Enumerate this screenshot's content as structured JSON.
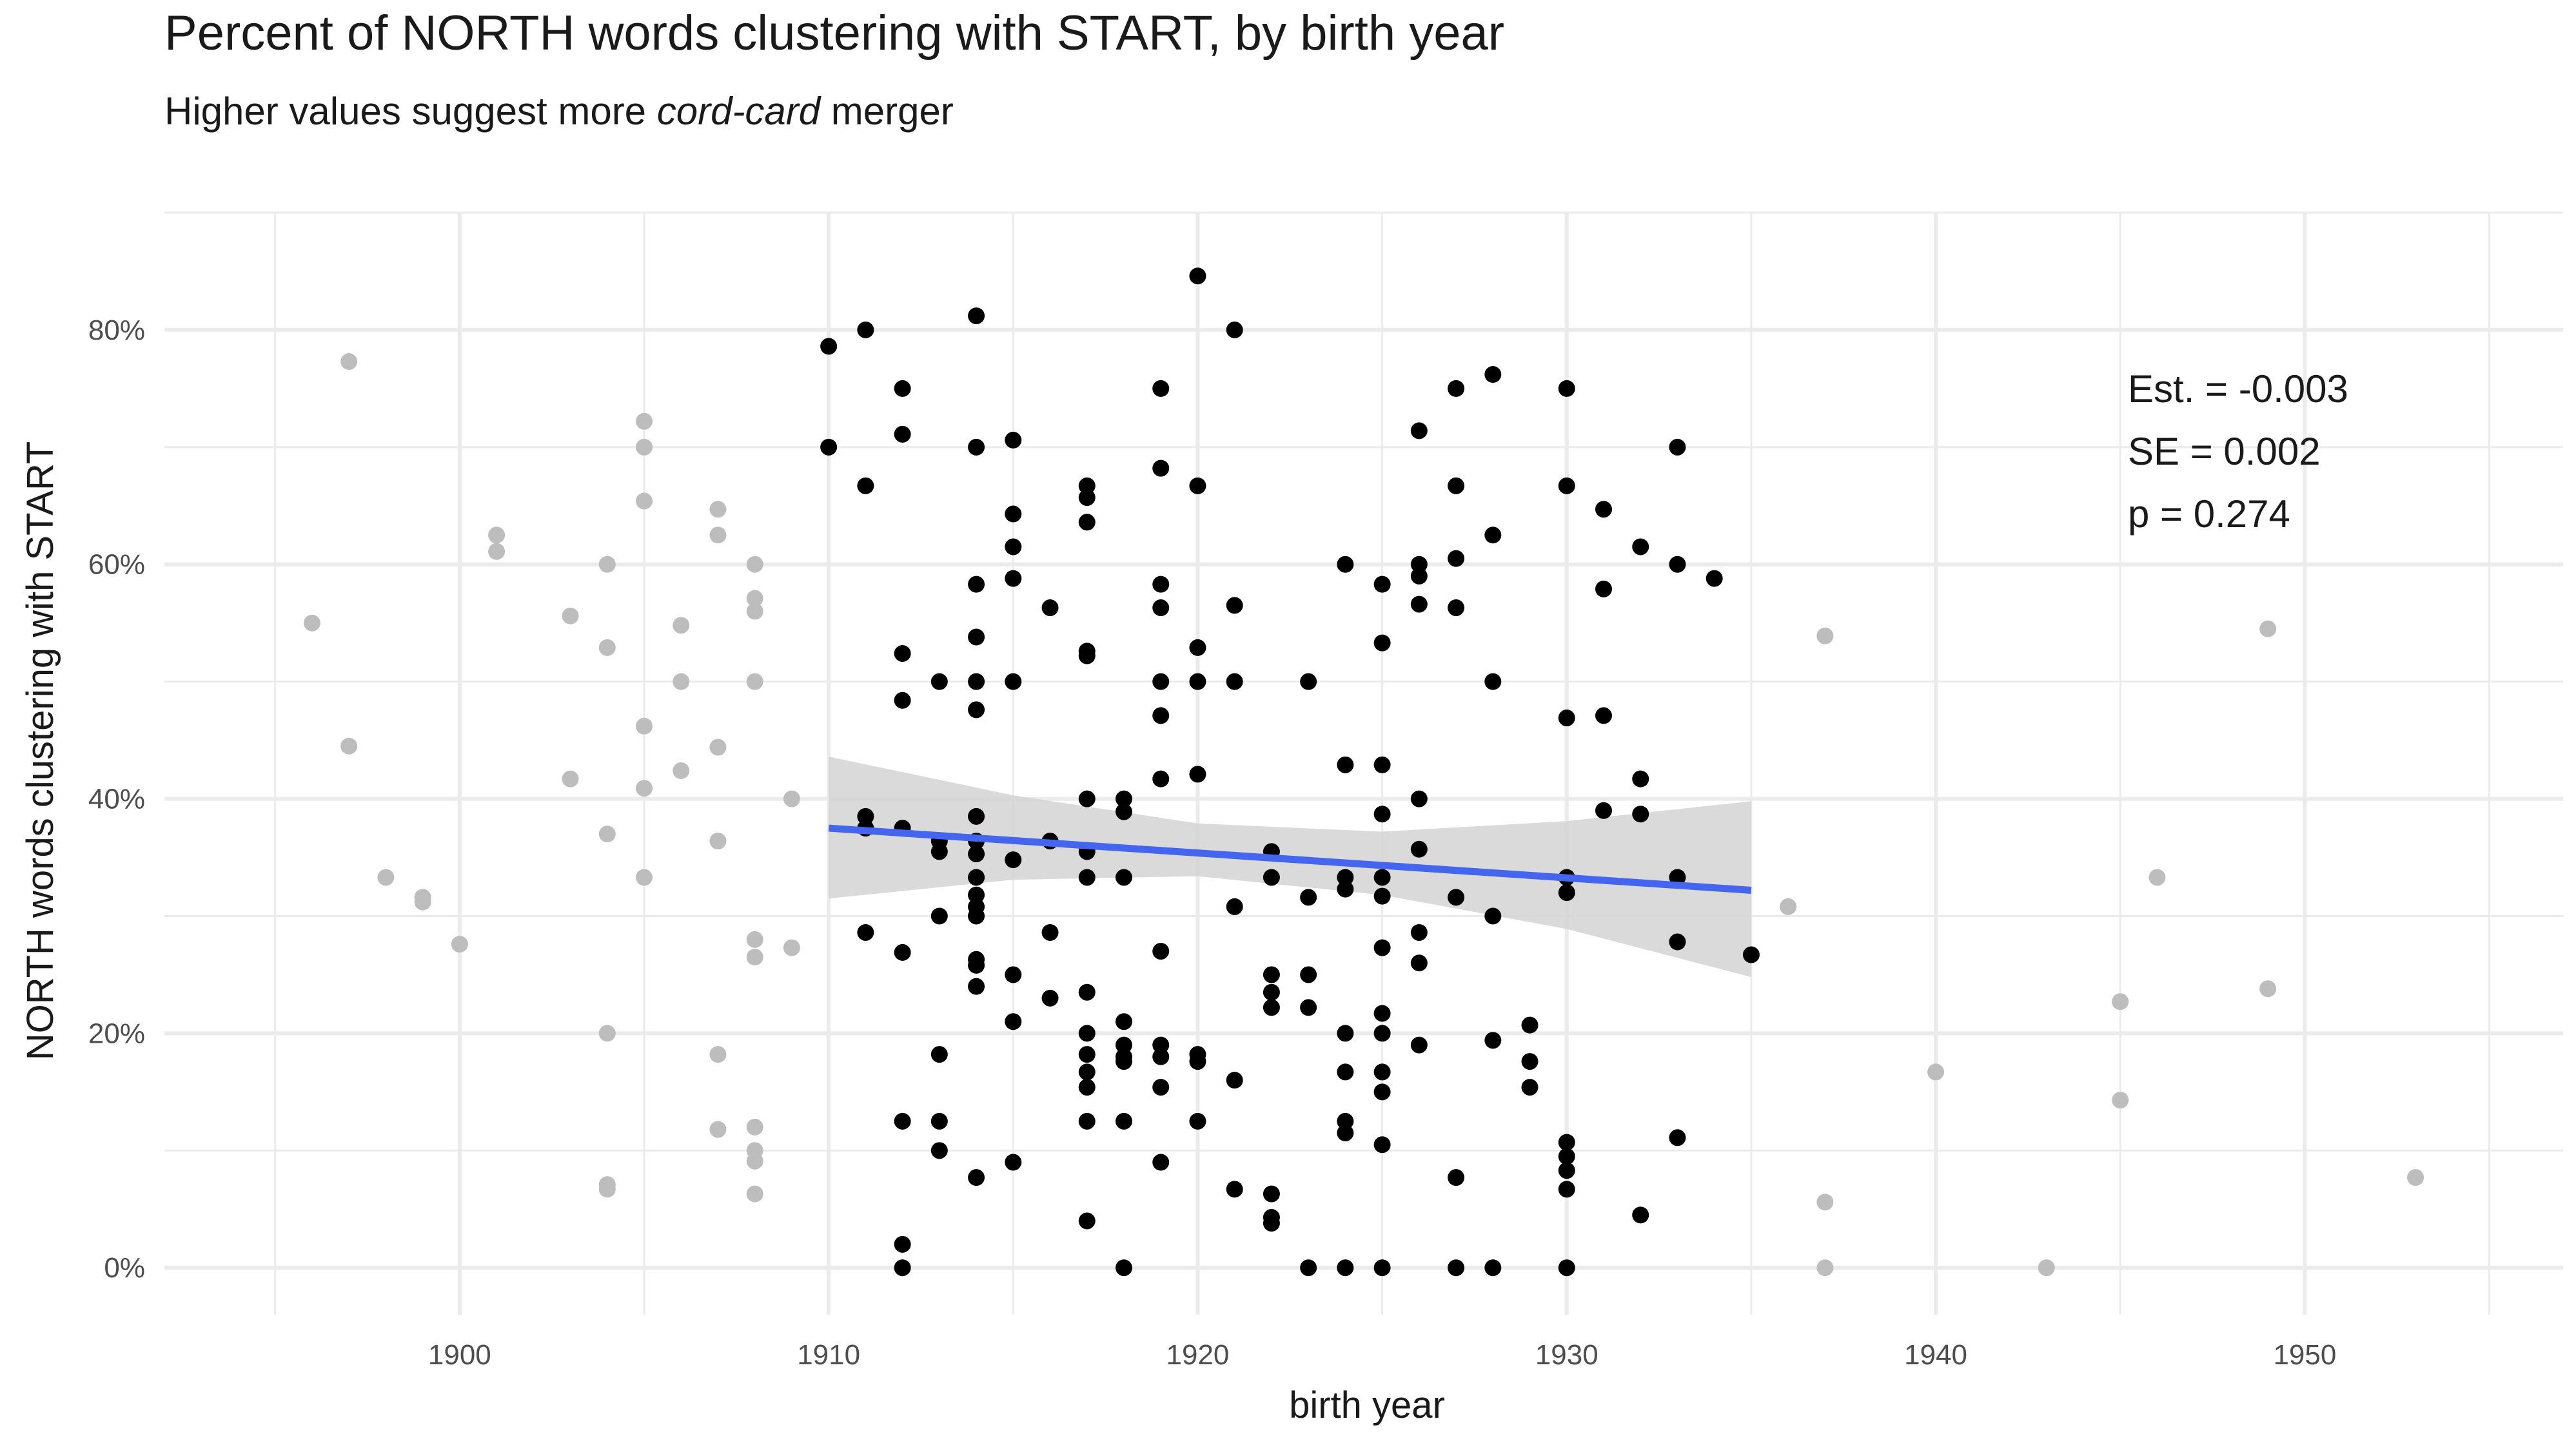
{
  "chart_data": {
    "type": "scatter",
    "title": "Percent of NORTH words clustering with START, by birth year",
    "subtitle": {
      "prefix": "Higher values suggest more ",
      "emphasis": "cord-card",
      "suffix": " merger"
    },
    "xlabel": "birth year",
    "ylabel": "NORTH words clustering with START",
    "xlim": [
      1892,
      1957
    ],
    "ylim": [
      -0.04,
      0.9
    ],
    "x_ticks": [
      1900,
      1910,
      1920,
      1930,
      1940,
      1950
    ],
    "x_tick_labels": [
      "1900",
      "1910",
      "1920",
      "1930",
      "1940",
      "1950"
    ],
    "y_ticks": [
      0,
      0.2,
      0.4,
      0.6,
      0.8
    ],
    "y_tick_labels": [
      "0%",
      "20%",
      "40%",
      "60%",
      "80%"
    ],
    "grid": true,
    "annotation": [
      "Est. = -0.003",
      "SE = 0.002",
      "p = 0.274"
    ],
    "annotation_position": "top-right",
    "colors": {
      "outside_range": "#bdbdbd",
      "in_range": "#000000",
      "trend_line": "#4466ee",
      "confidence_band": "#d3d3d3",
      "grid": "#ebebeb"
    },
    "series": [
      {
        "role": "outside fitted range",
        "color": "#bdbdbd",
        "points": [
          [
            1896,
            0.55
          ],
          [
            1897,
            0.773
          ],
          [
            1897,
            0.445
          ],
          [
            1898,
            0.333
          ],
          [
            1899,
            0.316
          ],
          [
            1899,
            0.312
          ],
          [
            1900,
            0.276
          ],
          [
            1901,
            0.625
          ],
          [
            1901,
            0.611
          ],
          [
            1903,
            0.556
          ],
          [
            1903,
            0.417
          ],
          [
            1904,
            0.6
          ],
          [
            1904,
            0.529
          ],
          [
            1904,
            0.37
          ],
          [
            1904,
            0.2
          ],
          [
            1904,
            0.071
          ],
          [
            1904,
            0.067
          ],
          [
            1905,
            0.722
          ],
          [
            1905,
            0.7
          ],
          [
            1905,
            0.654
          ],
          [
            1905,
            0.462
          ],
          [
            1905,
            0.409
          ],
          [
            1905,
            0.333
          ],
          [
            1906,
            0.548
          ],
          [
            1906,
            0.5
          ],
          [
            1906,
            0.424
          ],
          [
            1907,
            0.647
          ],
          [
            1907,
            0.625
          ],
          [
            1907,
            0.444
          ],
          [
            1907,
            0.364
          ],
          [
            1907,
            0.182
          ],
          [
            1907,
            0.118
          ],
          [
            1908,
            0.6
          ],
          [
            1908,
            0.571
          ],
          [
            1908,
            0.56
          ],
          [
            1908,
            0.5
          ],
          [
            1908,
            0.28
          ],
          [
            1908,
            0.265
          ],
          [
            1908,
            0.12
          ],
          [
            1908,
            0.1
          ],
          [
            1908,
            0.091
          ],
          [
            1908,
            0.063
          ],
          [
            1909,
            0.4
          ],
          [
            1909,
            0.273
          ],
          [
            1936,
            0.308
          ],
          [
            1937,
            0.539
          ],
          [
            1937,
            0.056
          ],
          [
            1937,
            0.0
          ],
          [
            1940,
            0.167
          ],
          [
            1943,
            0.0
          ],
          [
            1945,
            0.227
          ],
          [
            1945,
            0.143
          ],
          [
            1946,
            0.333
          ],
          [
            1949,
            0.545
          ],
          [
            1949,
            0.238
          ],
          [
            1953,
            0.077
          ]
        ]
      },
      {
        "role": "within fitted range",
        "color": "#000000",
        "points": [
          [
            1910,
            0.786
          ],
          [
            1910,
            0.7
          ],
          [
            1911,
            0.8
          ],
          [
            1911,
            0.667
          ],
          [
            1911,
            0.385
          ],
          [
            1911,
            0.375
          ],
          [
            1911,
            0.286
          ],
          [
            1912,
            0.75
          ],
          [
            1912,
            0.711
          ],
          [
            1912,
            0.524
          ],
          [
            1912,
            0.484
          ],
          [
            1912,
            0.375
          ],
          [
            1912,
            0.269
          ],
          [
            1912,
            0.125
          ],
          [
            1912,
            0.02
          ],
          [
            1912,
            0.0
          ],
          [
            1913,
            0.5
          ],
          [
            1913,
            0.364
          ],
          [
            1913,
            0.355
          ],
          [
            1913,
            0.3
          ],
          [
            1913,
            0.182
          ],
          [
            1913,
            0.125
          ],
          [
            1913,
            0.1
          ],
          [
            1914,
            0.812
          ],
          [
            1914,
            0.7
          ],
          [
            1914,
            0.583
          ],
          [
            1914,
            0.538
          ],
          [
            1914,
            0.5
          ],
          [
            1914,
            0.476
          ],
          [
            1914,
            0.385
          ],
          [
            1914,
            0.364
          ],
          [
            1914,
            0.353
          ],
          [
            1914,
            0.333
          ],
          [
            1914,
            0.318
          ],
          [
            1914,
            0.308
          ],
          [
            1914,
            0.3
          ],
          [
            1914,
            0.263
          ],
          [
            1914,
            0.258
          ],
          [
            1914,
            0.24
          ],
          [
            1914,
            0.077
          ],
          [
            1915,
            0.706
          ],
          [
            1915,
            0.643
          ],
          [
            1915,
            0.615
          ],
          [
            1915,
            0.588
          ],
          [
            1915,
            0.5
          ],
          [
            1915,
            0.348
          ],
          [
            1915,
            0.25
          ],
          [
            1915,
            0.21
          ],
          [
            1915,
            0.09
          ],
          [
            1916,
            0.563
          ],
          [
            1916,
            0.364
          ],
          [
            1916,
            0.286
          ],
          [
            1916,
            0.23
          ],
          [
            1917,
            0.667
          ],
          [
            1917,
            0.657
          ],
          [
            1917,
            0.636
          ],
          [
            1917,
            0.526
          ],
          [
            1917,
            0.522
          ],
          [
            1917,
            0.4
          ],
          [
            1917,
            0.355
          ],
          [
            1917,
            0.333
          ],
          [
            1917,
            0.235
          ],
          [
            1917,
            0.2
          ],
          [
            1917,
            0.182
          ],
          [
            1917,
            0.167
          ],
          [
            1917,
            0.154
          ],
          [
            1917,
            0.125
          ],
          [
            1917,
            0.04
          ],
          [
            1918,
            0.4
          ],
          [
            1918,
            0.389
          ],
          [
            1918,
            0.333
          ],
          [
            1918,
            0.21
          ],
          [
            1918,
            0.19
          ],
          [
            1918,
            0.18
          ],
          [
            1918,
            0.176
          ],
          [
            1918,
            0.125
          ],
          [
            1918,
            0.0
          ],
          [
            1919,
            0.75
          ],
          [
            1919,
            0.682
          ],
          [
            1919,
            0.583
          ],
          [
            1919,
            0.563
          ],
          [
            1919,
            0.5
          ],
          [
            1919,
            0.471
          ],
          [
            1919,
            0.417
          ],
          [
            1919,
            0.27
          ],
          [
            1919,
            0.19
          ],
          [
            1919,
            0.18
          ],
          [
            1919,
            0.154
          ],
          [
            1919,
            0.09
          ],
          [
            1920,
            0.846
          ],
          [
            1920,
            0.667
          ],
          [
            1920,
            0.529
          ],
          [
            1920,
            0.5
          ],
          [
            1920,
            0.421
          ],
          [
            1920,
            0.182
          ],
          [
            1920,
            0.176
          ],
          [
            1920,
            0.125
          ],
          [
            1921,
            0.8
          ],
          [
            1921,
            0.565
          ],
          [
            1921,
            0.5
          ],
          [
            1921,
            0.308
          ],
          [
            1921,
            0.16
          ],
          [
            1921,
            0.067
          ],
          [
            1922,
            0.355
          ],
          [
            1922,
            0.333
          ],
          [
            1922,
            0.25
          ],
          [
            1922,
            0.235
          ],
          [
            1922,
            0.222
          ],
          [
            1922,
            0.063
          ],
          [
            1922,
            0.043
          ],
          [
            1922,
            0.038
          ],
          [
            1923,
            0.5
          ],
          [
            1923,
            0.316
          ],
          [
            1923,
            0.25
          ],
          [
            1923,
            0.222
          ],
          [
            1923,
            0.0
          ],
          [
            1924,
            0.6
          ],
          [
            1924,
            0.429
          ],
          [
            1924,
            0.333
          ],
          [
            1924,
            0.323
          ],
          [
            1924,
            0.2
          ],
          [
            1924,
            0.167
          ],
          [
            1924,
            0.125
          ],
          [
            1924,
            0.115
          ],
          [
            1924,
            0.0
          ],
          [
            1925,
            0.583
          ],
          [
            1925,
            0.533
          ],
          [
            1925,
            0.429
          ],
          [
            1925,
            0.387
          ],
          [
            1925,
            0.333
          ],
          [
            1925,
            0.317
          ],
          [
            1925,
            0.273
          ],
          [
            1925,
            0.217
          ],
          [
            1925,
            0.2
          ],
          [
            1925,
            0.167
          ],
          [
            1925,
            0.15
          ],
          [
            1925,
            0.105
          ],
          [
            1925,
            0.0
          ],
          [
            1926,
            0.714
          ],
          [
            1926,
            0.6
          ],
          [
            1926,
            0.59
          ],
          [
            1926,
            0.566
          ],
          [
            1926,
            0.4
          ],
          [
            1926,
            0.357
          ],
          [
            1926,
            0.286
          ],
          [
            1926,
            0.26
          ],
          [
            1926,
            0.19
          ],
          [
            1927,
            0.75
          ],
          [
            1927,
            0.667
          ],
          [
            1927,
            0.605
          ],
          [
            1927,
            0.563
          ],
          [
            1927,
            0.316
          ],
          [
            1927,
            0.077
          ],
          [
            1927,
            0.0
          ],
          [
            1928,
            0.762
          ],
          [
            1928,
            0.625
          ],
          [
            1928,
            0.5
          ],
          [
            1928,
            0.3
          ],
          [
            1928,
            0.194
          ],
          [
            1928,
            0.0
          ],
          [
            1929,
            0.207
          ],
          [
            1929,
            0.176
          ],
          [
            1929,
            0.154
          ],
          [
            1930,
            0.75
          ],
          [
            1930,
            0.667
          ],
          [
            1930,
            0.469
          ],
          [
            1930,
            0.333
          ],
          [
            1930,
            0.32
          ],
          [
            1930,
            0.107
          ],
          [
            1930,
            0.095
          ],
          [
            1930,
            0.083
          ],
          [
            1930,
            0.067
          ],
          [
            1930,
            0.0
          ],
          [
            1931,
            0.647
          ],
          [
            1931,
            0.579
          ],
          [
            1931,
            0.471
          ],
          [
            1931,
            0.39
          ],
          [
            1932,
            0.615
          ],
          [
            1932,
            0.417
          ],
          [
            1932,
            0.387
          ],
          [
            1932,
            0.045
          ],
          [
            1933,
            0.7
          ],
          [
            1933,
            0.6
          ],
          [
            1933,
            0.333
          ],
          [
            1933,
            0.278
          ],
          [
            1933,
            0.111
          ],
          [
            1934,
            0.588
          ],
          [
            1935,
            0.267
          ]
        ]
      }
    ],
    "trend_line": {
      "x": [
        1910,
        1935
      ],
      "y": [
        0.375,
        0.322
      ]
    },
    "confidence_band": {
      "x": [
        1910,
        1915,
        1920,
        1925,
        1930,
        1935
      ],
      "lower": [
        0.315,
        0.331,
        0.334,
        0.318,
        0.289,
        0.248
      ],
      "upper": [
        0.436,
        0.403,
        0.379,
        0.372,
        0.381,
        0.398
      ]
    }
  }
}
